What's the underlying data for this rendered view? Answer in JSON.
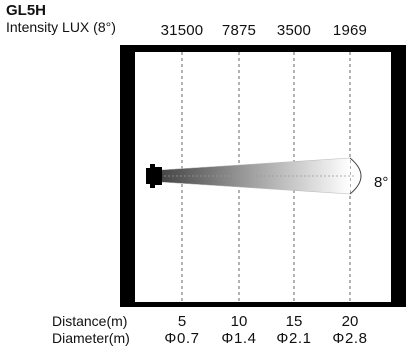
{
  "model": "GL5H",
  "intensity_label": "Intensity LUX (8°)",
  "lux_values": [
    "31500",
    "7875",
    "3500",
    "1969"
  ],
  "beam_angle": "8°",
  "distance_label": "Distance(m)",
  "diameter_label": "Diameter(m)",
  "distances": [
    "5",
    "10",
    "15",
    "20"
  ],
  "diameters": [
    "Φ0.7",
    "Φ1.4",
    "Φ2.1",
    "Φ2.8"
  ]
}
